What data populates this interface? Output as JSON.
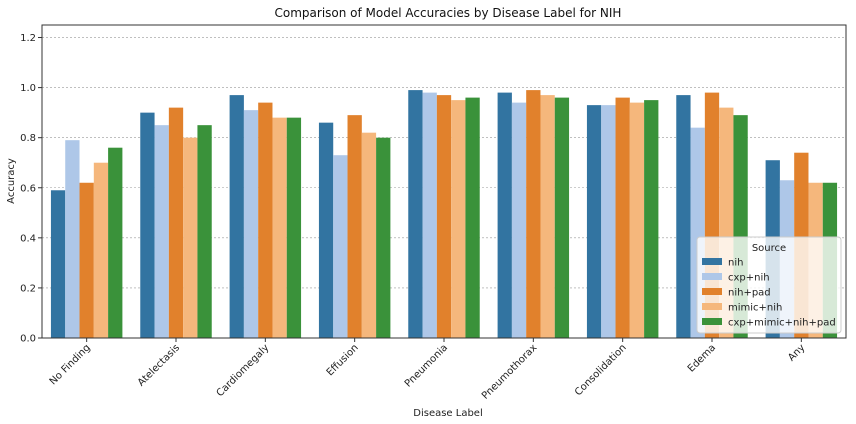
{
  "chart_data": {
    "type": "bar",
    "title": "Comparison of Model Accuracies by Disease Label for NIH",
    "xlabel": "Disease Label",
    "ylabel": "Accuracy",
    "ylim": [
      0,
      1.25
    ],
    "yticks": [
      "0.0",
      "0.2",
      "0.4",
      "0.6",
      "0.8",
      "1.0",
      "1.2"
    ],
    "grid": "horizontal dashed",
    "categories": [
      "No Finding",
      "Atelectasis",
      "Cardiomegaly",
      "Effusion",
      "Pneumonia",
      "Pneumothorax",
      "Consolidation",
      "Edema",
      "Any"
    ],
    "legend": {
      "title": "Source",
      "placement": "lower-right"
    },
    "series": [
      {
        "name": "nih",
        "color": "#3274a1",
        "values": [
          0.59,
          0.9,
          0.97,
          0.86,
          0.99,
          0.98,
          0.93,
          0.97,
          0.71
        ]
      },
      {
        "name": "cxp+nih",
        "color": "#aec7e8",
        "values": [
          0.79,
          0.85,
          0.91,
          0.73,
          0.98,
          0.94,
          0.93,
          0.84,
          0.63
        ]
      },
      {
        "name": "nih+pad",
        "color": "#e1812c",
        "values": [
          0.62,
          0.92,
          0.94,
          0.89,
          0.97,
          0.99,
          0.96,
          0.98,
          0.74
        ]
      },
      {
        "name": "mimic+nih",
        "color": "#f5b77c",
        "values": [
          0.7,
          0.8,
          0.88,
          0.82,
          0.95,
          0.97,
          0.94,
          0.92,
          0.62
        ]
      },
      {
        "name": "cxp+mimic+nih+pad",
        "color": "#3a923a",
        "values": [
          0.76,
          0.85,
          0.88,
          0.8,
          0.96,
          0.96,
          0.95,
          0.89,
          0.62
        ]
      }
    ]
  }
}
